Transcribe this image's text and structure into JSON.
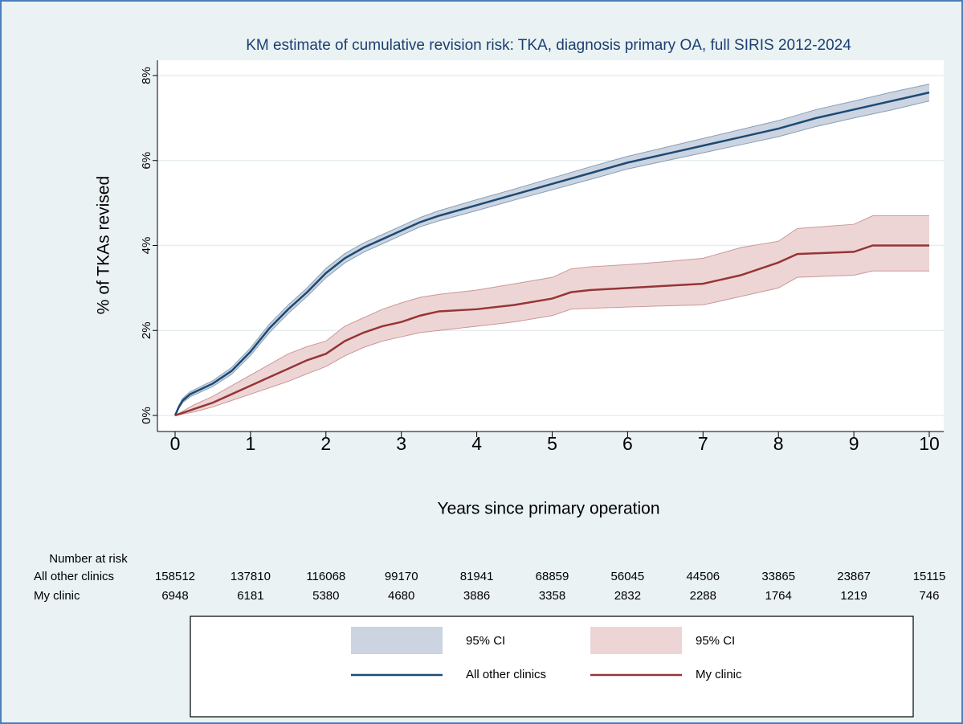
{
  "chart_data": {
    "type": "line",
    "title": "KM estimate of cumulative revision risk: TKA, diagnosis primary OA, full SIRIS 2012-2024",
    "xlabel": "Years since primary operation",
    "ylabel": "% of TKAs revised",
    "xlim": [
      0,
      10
    ],
    "xticks": [
      0,
      1,
      2,
      3,
      4,
      5,
      6,
      7,
      8,
      9,
      10
    ],
    "ylim": [
      0,
      8
    ],
    "yticks": [
      {
        "value": 0,
        "label": "0%"
      },
      {
        "value": 2,
        "label": "2%"
      },
      {
        "value": 4,
        "label": "4%"
      },
      {
        "value": 6,
        "label": "6%"
      },
      {
        "value": 8,
        "label": "8%"
      }
    ],
    "grid": true,
    "series": [
      {
        "name": "All other clinics",
        "ci_name": "95% CI",
        "color": "#1c4a75",
        "ci_color": "#cbd4e0",
        "x": [
          0,
          0.05,
          0.1,
          0.2,
          0.5,
          0.75,
          1,
          1.25,
          1.5,
          1.75,
          2,
          2.25,
          2.5,
          2.75,
          3,
          3.25,
          3.5,
          4,
          4.5,
          5,
          5.5,
          6,
          6.5,
          7,
          7.5,
          8,
          8.5,
          9,
          9.5,
          10
        ],
        "values": [
          0,
          0.2,
          0.35,
          0.5,
          0.75,
          1.05,
          1.5,
          2.05,
          2.5,
          2.9,
          3.35,
          3.7,
          3.95,
          4.15,
          4.35,
          4.55,
          4.7,
          4.95,
          5.2,
          5.45,
          5.7,
          5.95,
          6.15,
          6.35,
          6.55,
          6.75,
          7.0,
          7.2,
          7.4,
          7.6
        ],
        "lower": [
          0,
          0.16,
          0.3,
          0.44,
          0.68,
          0.97,
          1.41,
          1.95,
          2.4,
          2.8,
          3.24,
          3.59,
          3.84,
          4.04,
          4.24,
          4.44,
          4.58,
          4.82,
          5.07,
          5.31,
          5.55,
          5.8,
          5.99,
          6.18,
          6.37,
          6.56,
          6.8,
          7.0,
          7.19,
          7.4
        ],
        "upper": [
          0,
          0.24,
          0.4,
          0.56,
          0.82,
          1.13,
          1.59,
          2.15,
          2.6,
          3.0,
          3.46,
          3.81,
          4.06,
          4.26,
          4.46,
          4.66,
          4.82,
          5.08,
          5.33,
          5.59,
          5.85,
          6.1,
          6.31,
          6.52,
          6.73,
          6.94,
          7.2,
          7.4,
          7.61,
          7.8
        ]
      },
      {
        "name": "My clinic",
        "ci_name": "95% CI",
        "color": "#963536",
        "ci_color": "#eed5d5",
        "x": [
          0,
          0.25,
          0.5,
          0.75,
          1,
          1.25,
          1.5,
          1.75,
          2,
          2.25,
          2.5,
          2.75,
          3,
          3.25,
          3.5,
          4,
          4.5,
          5,
          5.25,
          5.5,
          6,
          6.5,
          7,
          7.5,
          8,
          8.25,
          9,
          9.25,
          10
        ],
        "values": [
          0,
          0.15,
          0.3,
          0.5,
          0.7,
          0.9,
          1.1,
          1.3,
          1.45,
          1.75,
          1.95,
          2.1,
          2.2,
          2.35,
          2.45,
          2.5,
          2.6,
          2.75,
          2.9,
          2.95,
          3.0,
          3.05,
          3.1,
          3.3,
          3.6,
          3.8,
          3.85,
          4.0,
          4.0
        ],
        "lower": [
          0,
          0.08,
          0.2,
          0.35,
          0.5,
          0.65,
          0.8,
          0.98,
          1.15,
          1.4,
          1.6,
          1.75,
          1.85,
          1.95,
          2.0,
          2.1,
          2.2,
          2.35,
          2.5,
          2.52,
          2.55,
          2.58,
          2.6,
          2.8,
          3.0,
          3.25,
          3.3,
          3.4,
          3.4
        ],
        "upper": [
          0,
          0.25,
          0.45,
          0.7,
          0.95,
          1.2,
          1.45,
          1.62,
          1.75,
          2.1,
          2.3,
          2.5,
          2.65,
          2.78,
          2.85,
          2.95,
          3.1,
          3.25,
          3.45,
          3.5,
          3.55,
          3.62,
          3.7,
          3.95,
          4.1,
          4.4,
          4.5,
          4.7,
          4.7
        ]
      }
    ],
    "risk_table": {
      "title": "Number at risk",
      "rows": [
        {
          "name": "All other clinics",
          "values": [
            158512,
            137810,
            116068,
            99170,
            81941,
            68859,
            56045,
            44506,
            33865,
            23867,
            15115
          ]
        },
        {
          "name": "My clinic",
          "values": [
            6948,
            6181,
            5380,
            4680,
            3886,
            3358,
            2832,
            2288,
            1764,
            1219,
            746
          ]
        }
      ]
    }
  }
}
